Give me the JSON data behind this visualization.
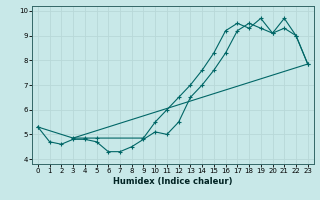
{
  "xlabel": "Humidex (Indice chaleur)",
  "ylabel": "",
  "bg_color": "#c8e8e8",
  "grid_color": "#b8d8d8",
  "line_color": "#006666",
  "xlim": [
    -0.5,
    23.5
  ],
  "ylim": [
    3.8,
    10.2
  ],
  "xticks": [
    0,
    1,
    2,
    3,
    4,
    5,
    6,
    7,
    8,
    9,
    10,
    11,
    12,
    13,
    14,
    15,
    16,
    17,
    18,
    19,
    20,
    21,
    22,
    23
  ],
  "yticks": [
    4,
    5,
    6,
    7,
    8,
    9,
    10
  ],
  "line1_x": [
    0,
    1,
    2,
    3,
    4,
    5,
    6,
    7,
    8,
    9,
    10,
    11,
    12,
    13,
    14,
    15,
    16,
    17,
    18,
    19,
    20,
    21,
    22,
    23
  ],
  "line1_y": [
    5.3,
    4.7,
    4.6,
    4.8,
    4.8,
    4.7,
    4.3,
    4.3,
    4.5,
    4.8,
    5.1,
    5.0,
    5.5,
    6.5,
    7.0,
    7.6,
    8.3,
    9.2,
    9.5,
    9.3,
    9.1,
    9.3,
    9.0,
    7.85
  ],
  "line2_x": [
    0,
    3,
    4,
    5,
    9,
    10,
    11,
    12,
    13,
    14,
    15,
    16,
    17,
    18,
    19,
    20,
    21,
    22,
    23
  ],
  "line2_y": [
    5.3,
    4.85,
    4.85,
    4.85,
    4.85,
    5.5,
    6.0,
    6.5,
    7.0,
    7.6,
    8.3,
    9.2,
    9.5,
    9.3,
    9.7,
    9.1,
    9.7,
    9.0,
    7.85
  ],
  "line3_x": [
    3,
    23
  ],
  "line3_y": [
    4.85,
    7.85
  ]
}
